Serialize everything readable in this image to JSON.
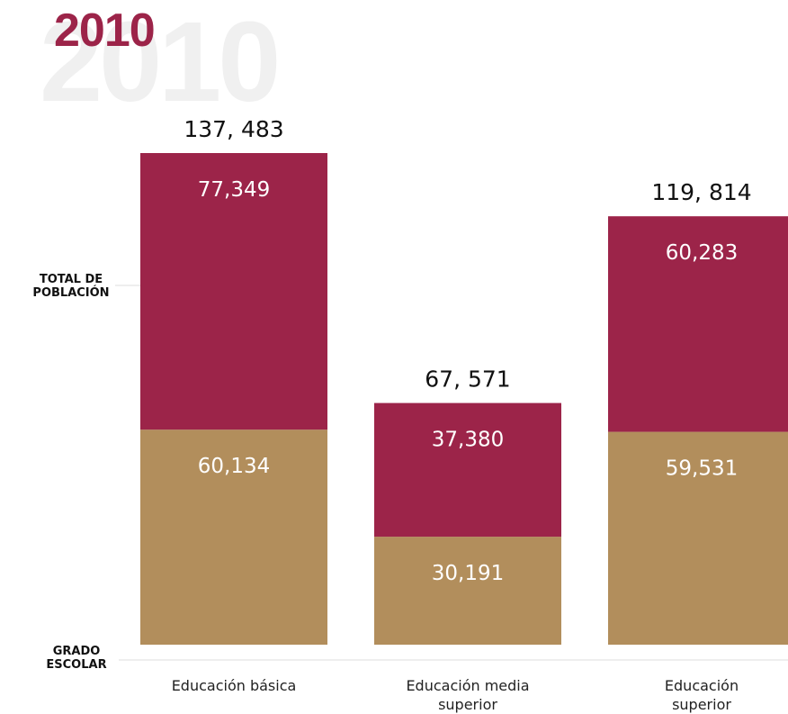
{
  "year_watermark": "2010",
  "year_title": "2010",
  "side_labels": {
    "total": [
      "TOTAL DE",
      "POBLACIÓN"
    ],
    "grado": [
      "GRADO",
      "ESCOLAR"
    ]
  },
  "colors": {
    "top_segment": "#9c2449",
    "bottom_segment": "#b28e5c",
    "title": "#9c2449",
    "watermark": "#f0f0f0"
  },
  "chart_data": {
    "type": "bar",
    "stacked": true,
    "categories": [
      [
        "Educación básica"
      ],
      [
        "Educación media",
        "superior"
      ],
      [
        "Educación",
        "superior"
      ]
    ],
    "totals": [
      "137, 483",
      "67, 571",
      "119, 814"
    ],
    "series": [
      {
        "values": [
          60134,
          30191,
          59531
        ],
        "labels": [
          "60,134",
          "30,191",
          "59,531"
        ],
        "color": "#b28e5c"
      },
      {
        "values": [
          77349,
          37380,
          60283
        ],
        "labels": [
          "77,349",
          "37,380",
          "60,283"
        ],
        "color": "#9c2449"
      }
    ],
    "ylim": [
      0,
      137483
    ],
    "grid": false
  }
}
